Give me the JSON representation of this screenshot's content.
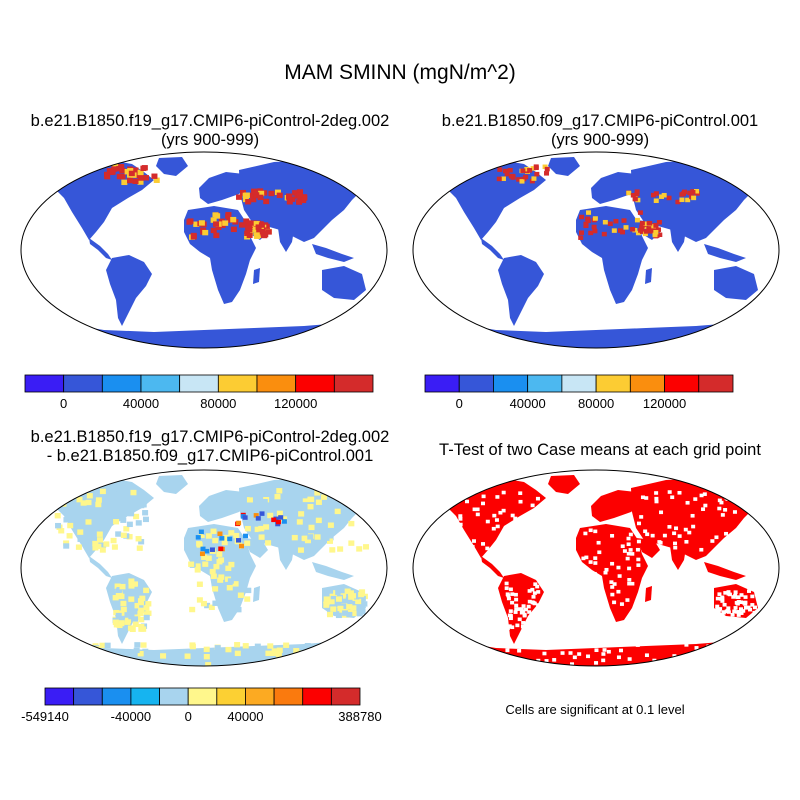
{
  "title": "MAM SMINN (mgN/m^2)",
  "panels": [
    {
      "title_line1": "b.e21.B1850.f19_g17.CMIP6-piControl-2deg.002",
      "title_line2": "(yrs 900-999)"
    },
    {
      "title_line1": "b.e21.B1850.f09_g17.CMIP6-piControl.001",
      "title_line2": "(yrs 900-999)"
    },
    {
      "title_line1": "b.e21.B1850.f19_g17.CMIP6-piControl-2deg.002",
      "title_line2": "- b.e21.B1850.f09_g17.CMIP6-piControl.001"
    },
    {
      "title_line1": "T-Test of two Case means at each grid point",
      "title_line2": ""
    }
  ],
  "colorbar_case": {
    "colors": [
      "#3a1df5",
      "#3656d8",
      "#1a8ff0",
      "#4cb8f0",
      "#c8e6f5",
      "#fccc33",
      "#fa8e0e",
      "#fc0000",
      "#d42b2b"
    ],
    "labels": [
      "0",
      "40000",
      "80000",
      "120000"
    ]
  },
  "colorbar_diff": {
    "colors": [
      "#3a1df5",
      "#3656d8",
      "#1a8ff0",
      "#16b4f0",
      "#a8d4ee",
      "#fff78c",
      "#fcd033",
      "#fcaa22",
      "#fa7a0e",
      "#fc0000",
      "#d42b2b"
    ],
    "labels": [
      "-549140",
      "-40000",
      "0",
      "40000",
      "388780"
    ]
  },
  "map_colors": {
    "case_land": "#3656d8",
    "case_high": "#d42b2b",
    "case_mid": "#fccc33",
    "diff_land": "#a8d4ee",
    "diff_pos": "#fff78c",
    "sig": "#fc0000"
  },
  "significance_note": "Cells are significant at 0.1 level"
}
